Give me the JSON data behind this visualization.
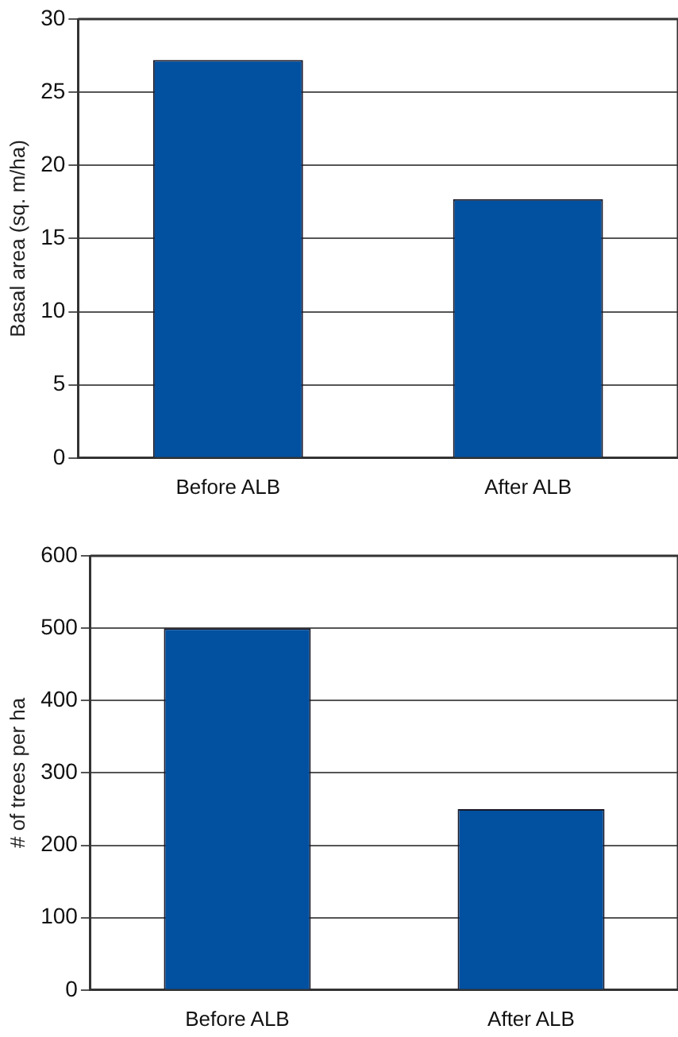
{
  "chart_data": [
    {
      "type": "bar",
      "categories": [
        "Before ALB",
        "After ALB"
      ],
      "series": [
        {
          "color": "#0250a0",
          "values": [
            27.2,
            17.7
          ]
        }
      ],
      "ylabel": "Basal area (sq. m/ha)",
      "ylim": [
        0,
        30
      ],
      "yticks": [
        0,
        5,
        10,
        15,
        20,
        25,
        30
      ],
      "grid": "y",
      "legend": false
    },
    {
      "type": "bar",
      "categories": [
        "Before ALB",
        "After ALB"
      ],
      "series": [
        {
          "color": "#0250a0",
          "values": [
            500,
            250
          ]
        }
      ],
      "ylabel": "# of trees per ha",
      "ylim": [
        0,
        600
      ],
      "yticks": [
        0,
        100,
        200,
        300,
        400,
        500,
        600
      ],
      "grid": "y",
      "legend": false
    }
  ]
}
